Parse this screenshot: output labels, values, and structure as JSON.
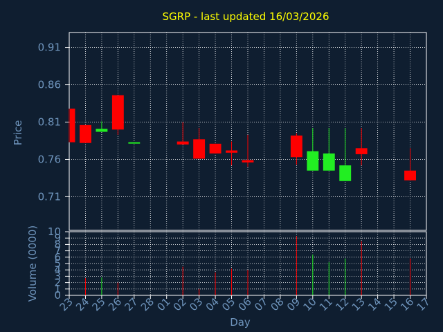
{
  "title": "SGRP - last updated 16/03/2026",
  "colors": {
    "background": "#0f1e30",
    "plot_border": "#ffffff",
    "grid": "#ffffff",
    "title": "#ffff00",
    "axis_text": "#6f95bd",
    "up": "#22ee22",
    "down": "#ff0000"
  },
  "chart_data": [
    {
      "type": "candlestick",
      "ylabel": "Price",
      "ylim": [
        0.665,
        0.93
      ],
      "yticks": [
        0.71,
        0.76,
        0.81,
        0.86,
        0.91
      ],
      "ytick_labels": [
        "0.71",
        "0.76",
        "0.81",
        "0.86",
        "0.91"
      ],
      "grid": true,
      "categories": [
        "23",
        "24",
        "25",
        "26",
        "27",
        "28",
        "01",
        "02",
        "03",
        "04",
        "05",
        "06",
        "07",
        "08",
        "09",
        "10",
        "11",
        "12",
        "13",
        "14",
        "15",
        "16",
        "17"
      ],
      "candles": [
        {
          "day": "23",
          "open": 0.828,
          "close": 0.783,
          "high": 0.828,
          "low": 0.783
        },
        {
          "day": "24",
          "open": 0.806,
          "close": 0.782,
          "high": 0.806,
          "low": 0.782
        },
        {
          "day": "25",
          "open": 0.797,
          "close": 0.801,
          "high": 0.811,
          "low": 0.797
        },
        {
          "day": "26",
          "open": 0.846,
          "close": 0.8,
          "high": 0.846,
          "low": 0.793
        },
        {
          "day": "27",
          "open": 0.782,
          "close": 0.783,
          "high": 0.783,
          "low": 0.782
        },
        {
          "day": "02",
          "open": 0.784,
          "close": 0.78,
          "high": 0.81,
          "low": 0.78
        },
        {
          "day": "03",
          "open": 0.787,
          "close": 0.761,
          "high": 0.802,
          "low": 0.761
        },
        {
          "day": "04",
          "open": 0.781,
          "close": 0.768,
          "high": 0.781,
          "low": 0.768
        },
        {
          "day": "05",
          "open": 0.772,
          "close": 0.769,
          "high": 0.784,
          "low": 0.752
        },
        {
          "day": "06",
          "open": 0.759,
          "close": 0.756,
          "high": 0.793,
          "low": 0.75
        },
        {
          "day": "09",
          "open": 0.792,
          "close": 0.763,
          "high": 0.795,
          "low": 0.753
        },
        {
          "day": "10",
          "open": 0.745,
          "close": 0.771,
          "high": 0.802,
          "low": 0.745
        },
        {
          "day": "11",
          "open": 0.745,
          "close": 0.768,
          "high": 0.802,
          "low": 0.745
        },
        {
          "day": "12",
          "open": 0.731,
          "close": 0.752,
          "high": 0.802,
          "low": 0.731
        },
        {
          "day": "13",
          "open": 0.775,
          "close": 0.767,
          "high": 0.802,
          "low": 0.752
        },
        {
          "day": "16",
          "open": 0.745,
          "close": 0.732,
          "high": 0.775,
          "low": 0.732
        }
      ]
    },
    {
      "type": "bar",
      "xlabel": "Day",
      "ylabel": "Volume (0000)",
      "ylim": [
        0,
        10
      ],
      "yticks": [
        0,
        1,
        2,
        3,
        4,
        5,
        6,
        7,
        8,
        9,
        10
      ],
      "ytick_labels": [
        "0",
        "1",
        "2",
        "3",
        "4",
        "5",
        "6",
        "7",
        "8",
        "9",
        "10"
      ],
      "grid": true,
      "categories": [
        "23",
        "24",
        "25",
        "26",
        "27",
        "28",
        "01",
        "02",
        "03",
        "04",
        "05",
        "06",
        "07",
        "08",
        "09",
        "10",
        "11",
        "12",
        "13",
        "14",
        "15",
        "16",
        "17"
      ],
      "bars": [
        {
          "day": "24",
          "value": 2.7,
          "direction": "down"
        },
        {
          "day": "25",
          "value": 2.8,
          "direction": "up"
        },
        {
          "day": "26",
          "value": 2.0,
          "direction": "down"
        },
        {
          "day": "02",
          "value": 4.5,
          "direction": "down"
        },
        {
          "day": "03",
          "value": 1.0,
          "direction": "down"
        },
        {
          "day": "04",
          "value": 3.6,
          "direction": "down"
        },
        {
          "day": "05",
          "value": 4.2,
          "direction": "down"
        },
        {
          "day": "06",
          "value": 4.0,
          "direction": "down"
        },
        {
          "day": "09",
          "value": 9.3,
          "direction": "down"
        },
        {
          "day": "10",
          "value": 6.4,
          "direction": "up"
        },
        {
          "day": "11",
          "value": 5.2,
          "direction": "up"
        },
        {
          "day": "12",
          "value": 5.8,
          "direction": "up"
        },
        {
          "day": "13",
          "value": 8.5,
          "direction": "down"
        },
        {
          "day": "16",
          "value": 5.8,
          "direction": "down"
        }
      ]
    }
  ]
}
